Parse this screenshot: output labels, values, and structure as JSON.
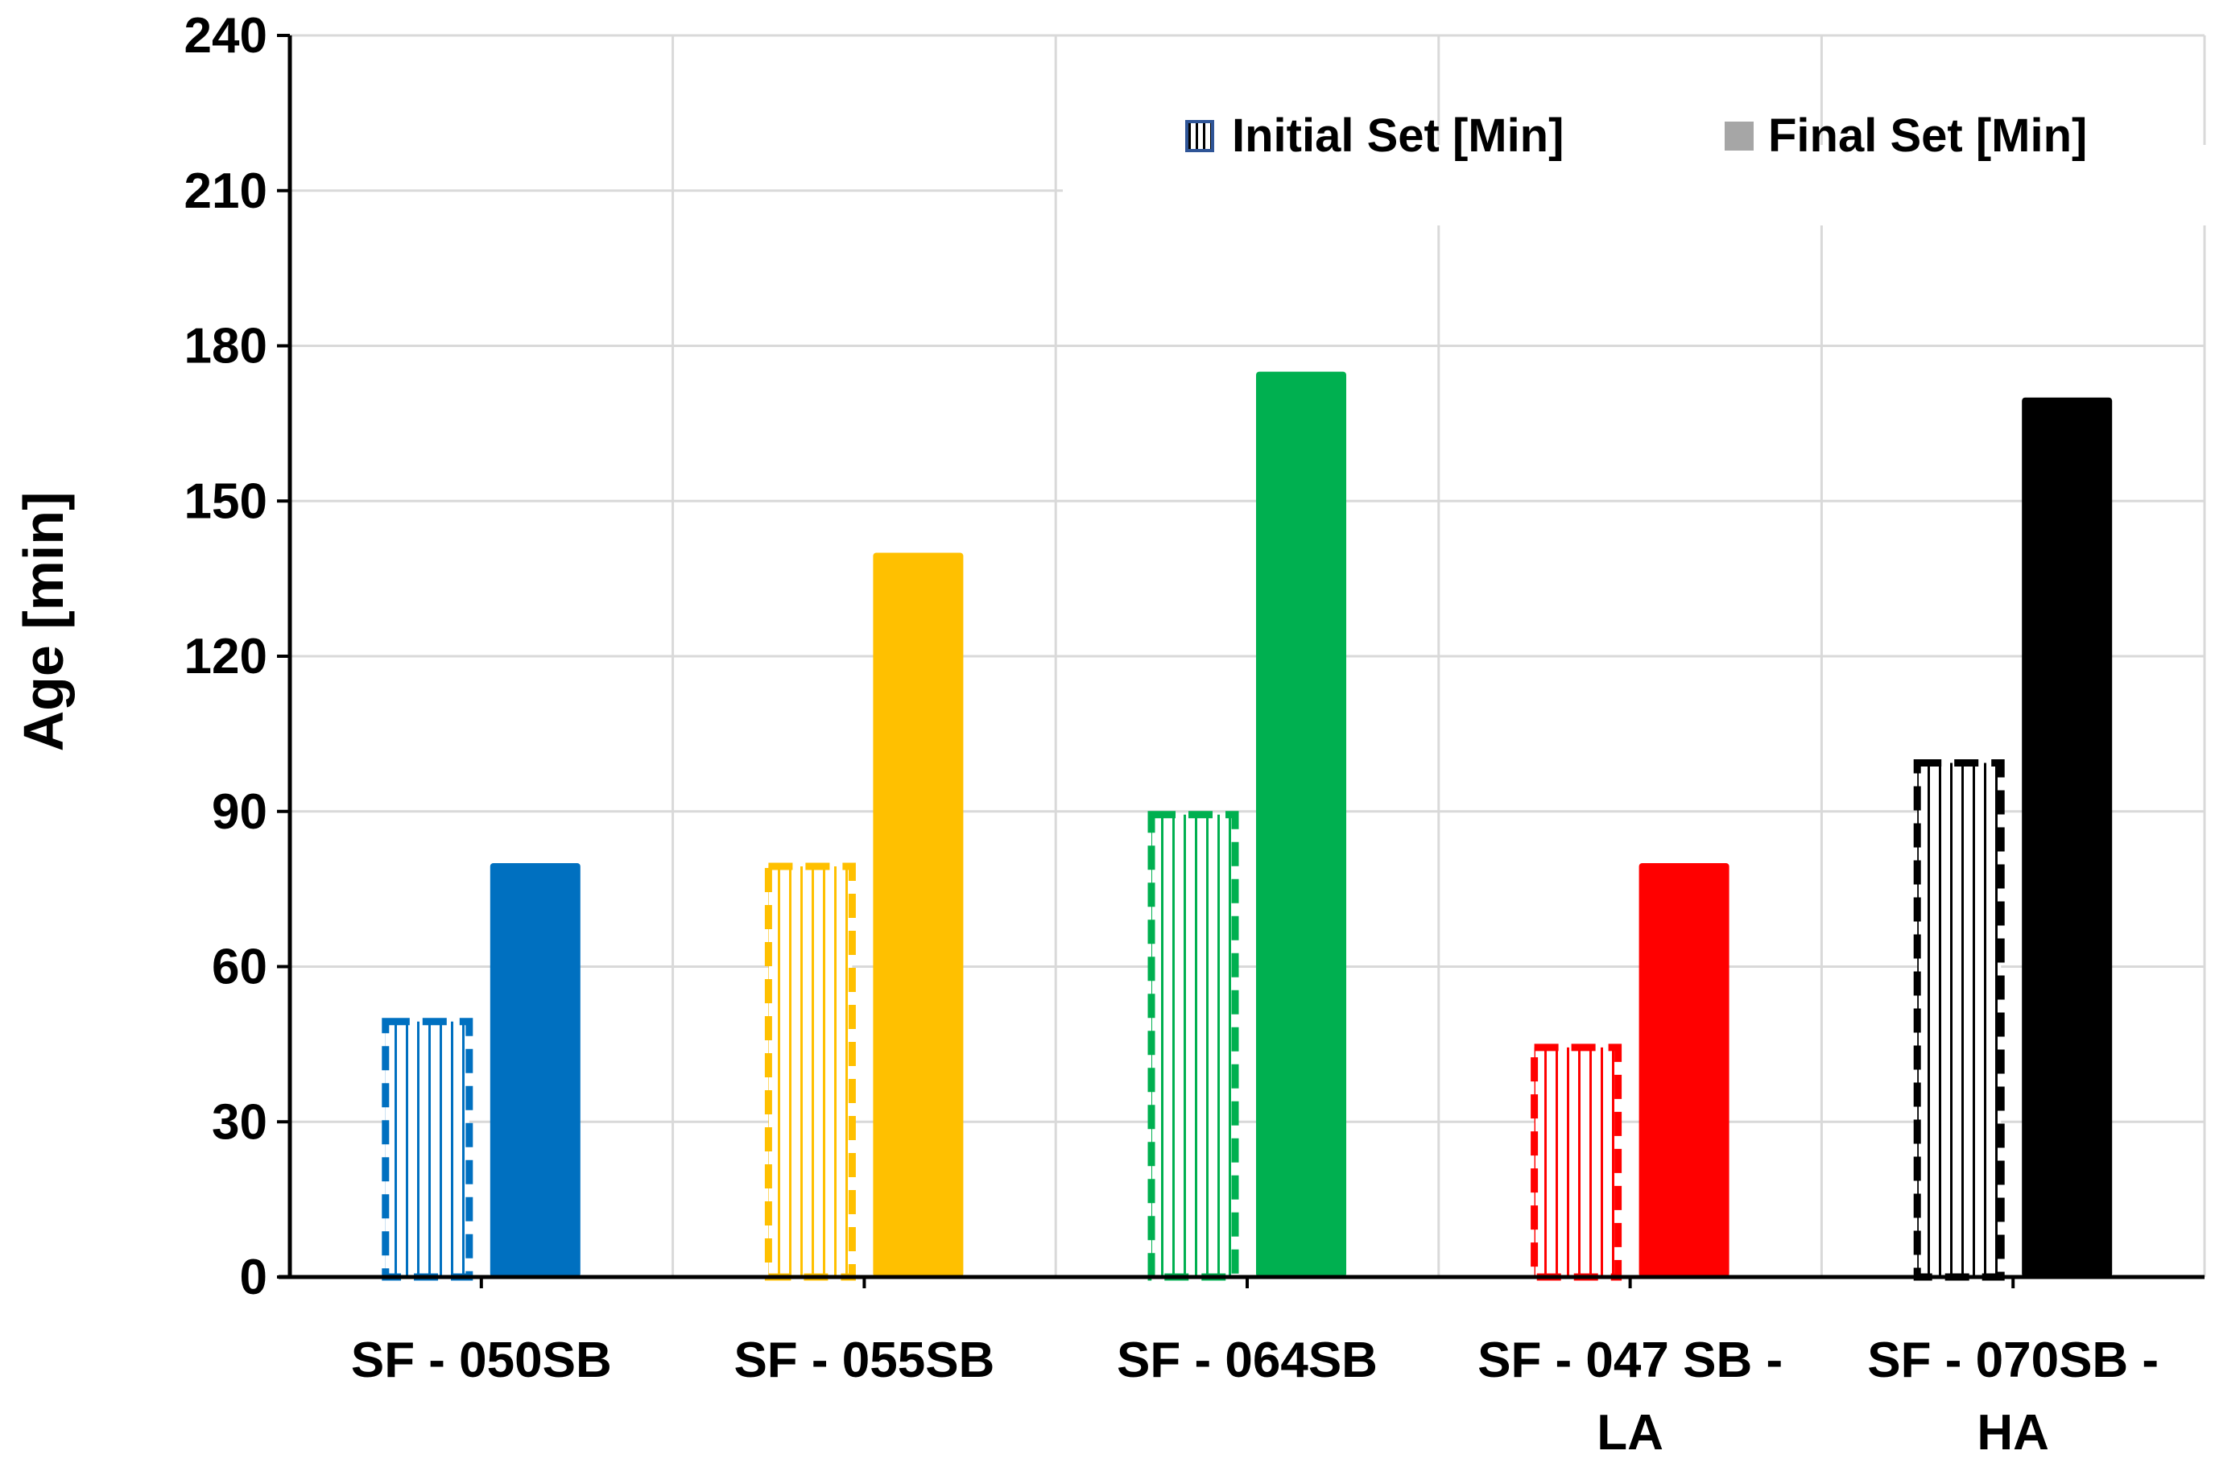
{
  "chart_data": {
    "type": "bar",
    "title": "",
    "xlabel": "",
    "ylabel": "Age [min]",
    "ylim": [
      0,
      240
    ],
    "yticks": [
      0,
      30,
      60,
      90,
      120,
      150,
      180,
      210,
      240
    ],
    "grid": true,
    "legend_position": "top-right",
    "categories": [
      [
        "SF - 050SB"
      ],
      [
        "SF - 055SB"
      ],
      [
        "SF - 064SB"
      ],
      [
        "SF - 047 SB -",
        "LA"
      ],
      [
        "SF - 070SB -",
        "HA"
      ]
    ],
    "category_colors": [
      "#0070C0",
      "#FFC000",
      "#00B050",
      "#FF0000",
      "#000000"
    ],
    "series": [
      {
        "name": "Initial Set [Min]",
        "style": "hatched-dashed",
        "values": [
          50,
          80,
          90,
          45,
          100
        ]
      },
      {
        "name": "Final Set [Min]",
        "style": "solid",
        "values": [
          80,
          140,
          175,
          80,
          170
        ]
      }
    ],
    "legend_colors": {
      "initial": "#2F5597",
      "final": "#A6A6A6"
    }
  }
}
